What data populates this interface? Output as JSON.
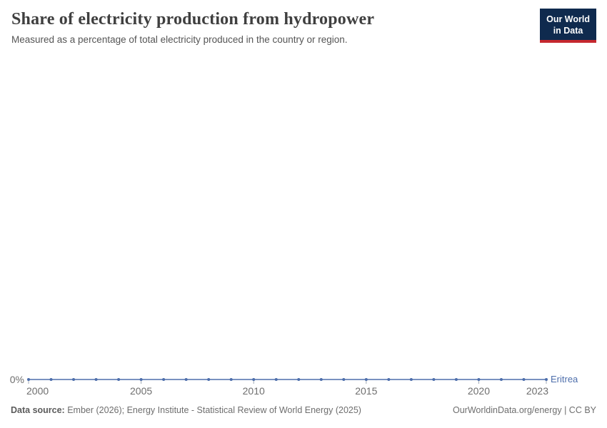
{
  "header": {
    "title": "Share of electricity production from hydropower",
    "subtitle": "Measured as a percentage of total electricity produced in the country or region.",
    "logo": {
      "line1": "Our World",
      "line2": "in Data"
    }
  },
  "chart_data": {
    "type": "line",
    "x": [
      2000,
      2001,
      2002,
      2003,
      2004,
      2005,
      2006,
      2007,
      2008,
      2009,
      2010,
      2011,
      2012,
      2013,
      2014,
      2015,
      2016,
      2017,
      2018,
      2019,
      2020,
      2021,
      2022,
      2023
    ],
    "series": [
      {
        "name": "Eritrea",
        "values": [
          0,
          0,
          0,
          0,
          0,
          0,
          0,
          0,
          0,
          0,
          0,
          0,
          0,
          0,
          0,
          0,
          0,
          0,
          0,
          0,
          0,
          0,
          0,
          0
        ]
      }
    ],
    "x_ticks": [
      2000,
      2005,
      2010,
      2015,
      2020,
      2023
    ],
    "y_ticks": [
      "0%"
    ],
    "title": "Share of electricity production from hydropower",
    "xlabel": "",
    "ylabel": "",
    "grid": false,
    "legend_position": "end-of-line",
    "line_color": "#4d6eab",
    "tick_label_color": "#6e6e6e",
    "tick_mark_color": "#9fa9b4"
  },
  "footer": {
    "datasource_label": "Data source:",
    "datasource_text": " Ember (2026); Energy Institute - Statistical Review of World Energy (2025)",
    "note_right": "OurWorldinData.org/energy | CC BY"
  }
}
